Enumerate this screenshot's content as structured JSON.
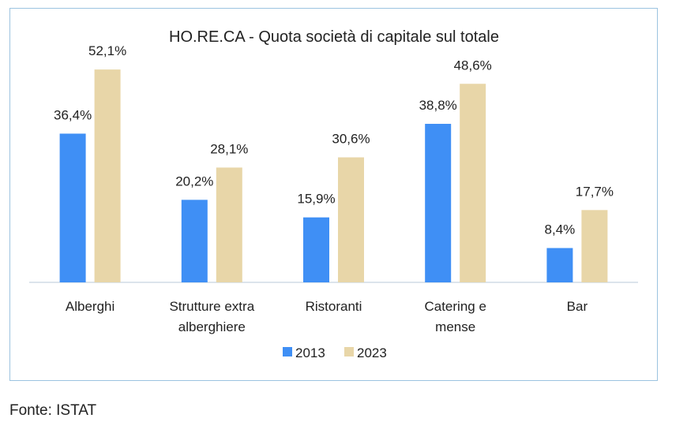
{
  "chart_data": {
    "type": "bar",
    "title": "HO.RE.CA - Quota società di capitale sul totale",
    "categories": [
      [
        "Alberghi"
      ],
      [
        "Strutture extra",
        "alberghiere"
      ],
      [
        "Ristoranti"
      ],
      [
        "Catering e",
        "mense"
      ],
      [
        "Bar"
      ]
    ],
    "series": [
      {
        "name": "2013",
        "color": "#3f8ff5",
        "values": [
          36.4,
          20.2,
          15.9,
          38.8,
          8.4
        ],
        "labels": [
          "36,4%",
          "20,2%",
          "15,9%",
          "38,8%",
          "8,4%"
        ]
      },
      {
        "name": "2023",
        "color": "#e8d6a8",
        "values": [
          52.1,
          28.1,
          30.6,
          48.6,
          17.7
        ],
        "labels": [
          "52,1%",
          "28,1%",
          "30,6%",
          "48,6%",
          "17,7%"
        ]
      }
    ],
    "ylim": [
      0,
      60
    ],
    "grid": false,
    "legend": "bottom"
  },
  "source": "Fonte: ISTAT"
}
